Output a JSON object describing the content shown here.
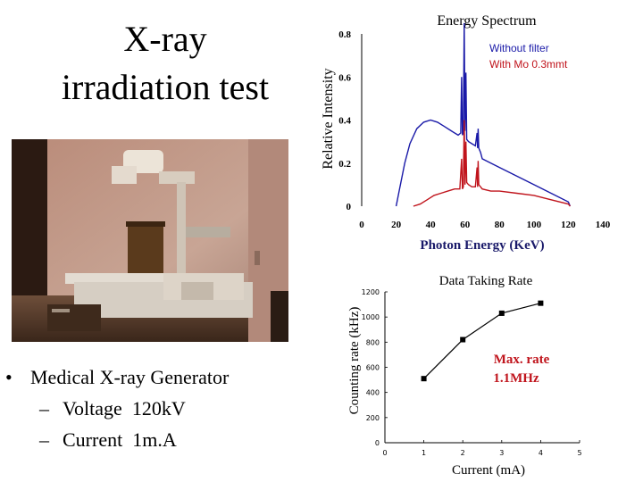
{
  "slide": {
    "title_line1": "X-ray",
    "title_line2": "irradiation test",
    "bullet": "Medical X-ray Generator",
    "sub_bullets": [
      {
        "label": "Voltage",
        "value": "120kV"
      },
      {
        "label": "Current",
        "value": "1m.A"
      }
    ]
  },
  "chart_data": [
    {
      "type": "line",
      "title": "Energy Spectrum",
      "xlabel": "Photon Energy (KeV)",
      "ylabel": "Relative Intensity",
      "xlim": [
        0,
        140
      ],
      "ylim": [
        0,
        0.8
      ],
      "xticks": [
        "0",
        "20",
        "40",
        "60",
        "80",
        "100",
        "120",
        "140"
      ],
      "yticks": [
        "0",
        "0.2",
        "0.4",
        "0.6",
        "0.8"
      ],
      "legend": "top-right",
      "series": [
        {
          "name": "Without filter",
          "color": "#1a1aa8",
          "x": [
            20,
            22,
            25,
            28,
            32,
            36,
            40,
            44,
            48,
            52,
            56,
            57.5,
            58,
            58.5,
            59,
            59.5,
            60,
            60.5,
            61,
            62,
            64,
            66,
            67,
            67.3,
            67.6,
            68,
            68.5,
            69,
            70,
            75,
            80,
            90,
            100,
            110,
            120,
            121
          ],
          "y": [
            0.0,
            0.08,
            0.2,
            0.29,
            0.36,
            0.39,
            0.4,
            0.39,
            0.37,
            0.35,
            0.33,
            0.34,
            0.6,
            0.33,
            0.34,
            0.85,
            0.35,
            0.62,
            0.31,
            0.3,
            0.29,
            0.28,
            0.34,
            0.27,
            0.36,
            0.27,
            0.26,
            0.25,
            0.22,
            0.2,
            0.18,
            0.14,
            0.1,
            0.06,
            0.02,
            0.0
          ]
        },
        {
          "name": "With Mo 0.3mmt",
          "color": "#c0141c",
          "x": [
            30,
            34,
            38,
            42,
            46,
            50,
            54,
            57,
            58,
            58.5,
            59,
            59.5,
            60,
            60.5,
            61,
            62,
            64,
            66,
            67,
            67.3,
            67.6,
            68,
            69,
            70,
            75,
            80,
            90,
            100,
            110,
            120,
            121
          ],
          "y": [
            0.0,
            0.01,
            0.03,
            0.05,
            0.06,
            0.07,
            0.08,
            0.08,
            0.22,
            0.08,
            0.09,
            0.4,
            0.1,
            0.3,
            0.11,
            0.1,
            0.09,
            0.09,
            0.18,
            0.09,
            0.21,
            0.1,
            0.09,
            0.08,
            0.07,
            0.07,
            0.06,
            0.05,
            0.03,
            0.01,
            0.0
          ]
        }
      ]
    },
    {
      "type": "line",
      "title": "Data Taking Rate",
      "xlabel": "Current (mA)",
      "ylabel": "Counting rate (kHz)",
      "xlim": [
        0,
        5
      ],
      "ylim": [
        0,
        1200
      ],
      "xticks": [
        "0",
        "1",
        "2",
        "3",
        "4",
        "5"
      ],
      "yticks": [
        "0",
        "200",
        "400",
        "600",
        "800",
        "1000",
        "1200"
      ],
      "annotation": {
        "line1": "Max. rate",
        "line2": "1.1MHz",
        "color": "#c0141c"
      },
      "series": [
        {
          "x": [
            1,
            2,
            3,
            4
          ],
          "y": [
            510,
            820,
            1030,
            1110
          ]
        }
      ]
    }
  ]
}
